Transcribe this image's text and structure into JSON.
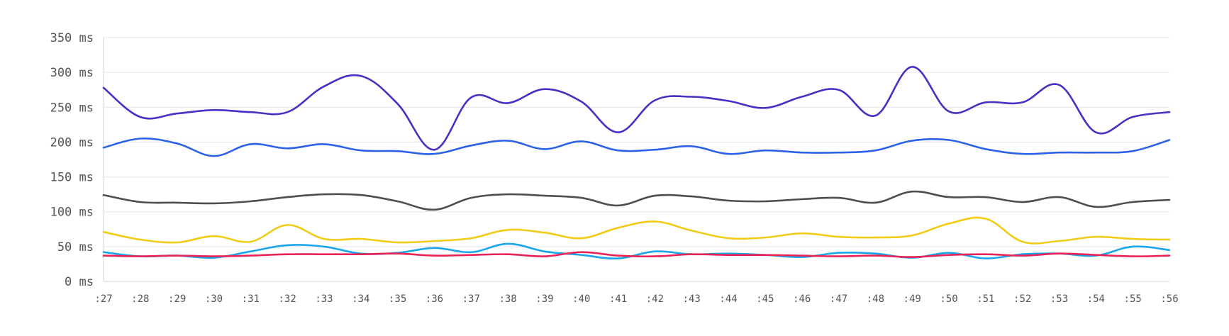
{
  "chart_data": {
    "type": "line",
    "title": "",
    "xlabel": "",
    "ylabel": "",
    "ylim": [
      0,
      350
    ],
    "grid": true,
    "legend": "none",
    "y_ticks": [
      {
        "value": 0,
        "label": "0 ms"
      },
      {
        "value": 50,
        "label": "50 ms"
      },
      {
        "value": 100,
        "label": "100 ms"
      },
      {
        "value": 150,
        "label": "150 ms"
      },
      {
        "value": 200,
        "label": "200 ms"
      },
      {
        "value": 250,
        "label": "250 ms"
      },
      {
        "value": 300,
        "label": "300 ms"
      },
      {
        "value": 350,
        "label": "350 ms"
      }
    ],
    "categories": [
      ":27",
      ":28",
      ":29",
      ":30",
      ":31",
      ":32",
      ":33",
      ":34",
      ":35",
      ":36",
      ":37",
      ":38",
      ":39",
      ":40",
      ":41",
      ":42",
      ":43",
      ":44",
      ":45",
      ":46",
      ":47",
      ":48",
      ":49",
      ":50",
      ":51",
      ":52",
      ":53",
      ":54",
      ":55",
      ":56"
    ],
    "series": [
      {
        "name": "series-purple",
        "color": "#4b2fc4",
        "values": [
          278,
          236,
          241,
          246,
          243,
          243,
          280,
          295,
          255,
          189,
          264,
          256,
          276,
          258,
          214,
          260,
          265,
          259,
          249,
          265,
          275,
          238,
          308,
          244,
          257,
          257,
          282,
          214,
          236,
          243
        ]
      },
      {
        "name": "series-blue",
        "color": "#2c62e8",
        "values": [
          192,
          205,
          198,
          180,
          197,
          191,
          197,
          188,
          187,
          183,
          195,
          202,
          190,
          201,
          188,
          189,
          194,
          183,
          188,
          185,
          185,
          188,
          202,
          203,
          190,
          183,
          185,
          185,
          187,
          203
        ]
      },
      {
        "name": "series-gray",
        "color": "#4d4d52",
        "values": [
          124,
          114,
          113,
          112,
          115,
          121,
          125,
          124,
          115,
          103,
          120,
          125,
          123,
          120,
          109,
          123,
          122,
          116,
          115,
          118,
          120,
          113,
          129,
          121,
          121,
          114,
          121,
          107,
          114,
          117
        ]
      },
      {
        "name": "series-yellow",
        "color": "#f0cc17",
        "values": [
          71,
          60,
          56,
          65,
          57,
          81,
          61,
          61,
          56,
          58,
          62,
          74,
          70,
          62,
          77,
          86,
          73,
          62,
          63,
          69,
          64,
          63,
          66,
          83,
          90,
          57,
          58,
          64,
          61,
          60
        ]
      },
      {
        "name": "series-cyan",
        "color": "#1aa6ea",
        "values": [
          42,
          36,
          37,
          34,
          43,
          52,
          50,
          40,
          41,
          48,
          42,
          54,
          43,
          38,
          33,
          43,
          39,
          40,
          38,
          35,
          41,
          40,
          34,
          41,
          33,
          39,
          40,
          37,
          50,
          45
        ]
      },
      {
        "name": "series-red",
        "color": "#ea2356",
        "values": [
          37,
          36,
          37,
          36,
          37,
          39,
          39,
          39,
          40,
          37,
          38,
          39,
          36,
          42,
          37,
          36,
          39,
          38,
          38,
          37,
          36,
          37,
          35,
          38,
          39,
          37,
          40,
          38,
          36,
          37
        ]
      }
    ]
  }
}
